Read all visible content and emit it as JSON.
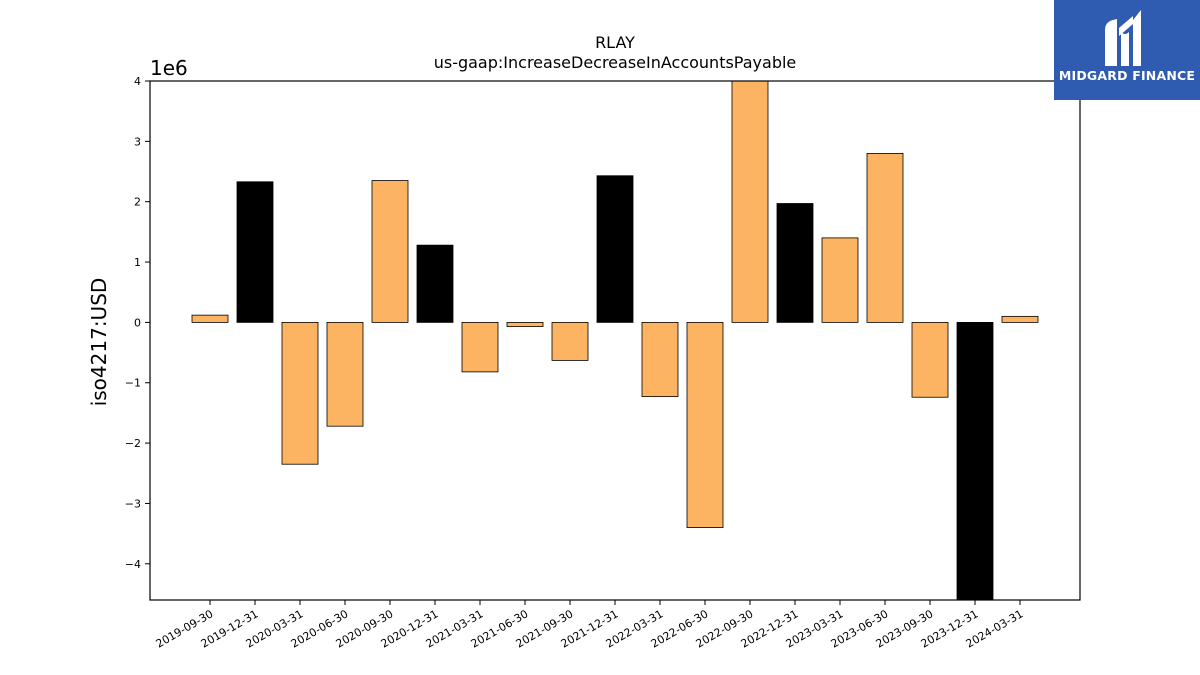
{
  "brand": {
    "name": "MIDGARD FINANCE",
    "bg_color": "#2f5bb0"
  },
  "colors": {
    "bar_default": "#fdb462",
    "bar_q4": "#000000"
  },
  "chart_data": {
    "type": "bar",
    "title": "RLAY",
    "subtitle": "us-gaap:IncreaseDecreaseInAccountsPayable",
    "ylabel": "iso4217:USD",
    "xlabel": "",
    "scale_label": "1e6",
    "ylim": [
      -4.6,
      4.0
    ],
    "yticks": [
      -4,
      -3,
      -2,
      -1,
      0,
      1,
      2,
      3,
      4
    ],
    "grid": false,
    "categories": [
      "2019-09-30",
      "2019-12-31",
      "2020-03-31",
      "2020-06-30",
      "2020-09-30",
      "2020-12-31",
      "2021-03-31",
      "2021-06-30",
      "2021-09-30",
      "2021-12-31",
      "2022-03-31",
      "2022-06-30",
      "2022-09-30",
      "2022-12-31",
      "2023-03-31",
      "2023-06-30",
      "2023-09-30",
      "2023-12-31",
      "2024-03-31"
    ],
    "values": [
      0.12,
      2.33,
      -2.35,
      -1.72,
      2.35,
      1.28,
      -0.82,
      -0.07,
      -0.63,
      2.43,
      -1.23,
      -3.4,
      4.05,
      1.97,
      1.4,
      2.8,
      -1.24,
      -4.65,
      0.1
    ]
  }
}
